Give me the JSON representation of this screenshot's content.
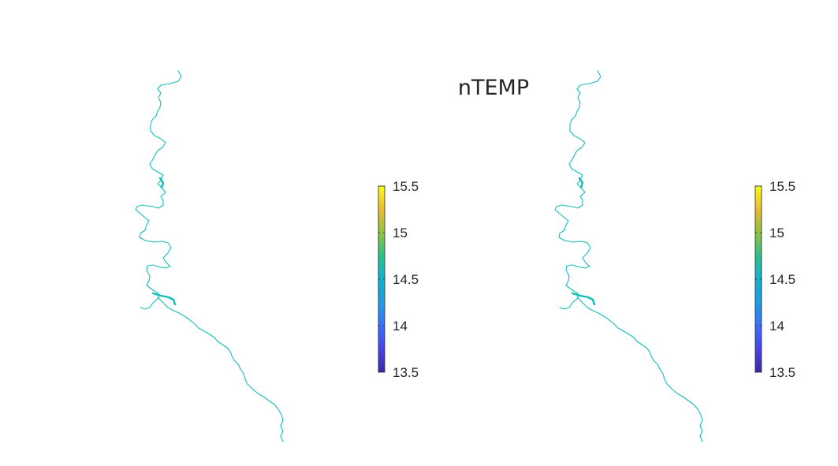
{
  "title": "nTEMP",
  "chart_data": [
    {
      "type": "heatmap",
      "subtype": "river-map",
      "colormap": "parula",
      "clim": [
        13.5,
        15.5
      ],
      "colorbar_ticks": [
        "13.5",
        "14",
        "14.5",
        "15",
        "15.5"
      ],
      "river_value": 14.6,
      "river_color": "#12BEB9",
      "grid": false,
      "axes_visible": false,
      "colorbar_position": "right"
    },
    {
      "type": "heatmap",
      "subtype": "river-map",
      "colormap": "parula",
      "clim": [
        13.5,
        15.5
      ],
      "colorbar_ticks": [
        "13.5",
        "14",
        "14.5",
        "15",
        "15.5"
      ],
      "river_value": 14.6,
      "river_color": "#12BEB9",
      "grid": false,
      "axes_visible": false,
      "colorbar_position": "right"
    }
  ]
}
